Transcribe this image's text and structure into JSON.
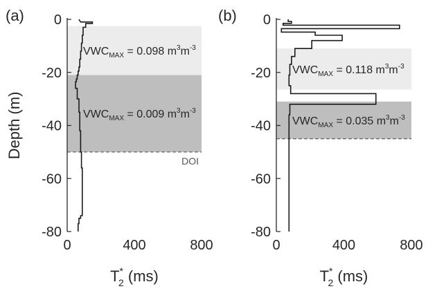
{
  "chart_data": [
    {
      "type": "line",
      "panel_label": "(a)",
      "xlabel": "T",
      "xlabel_sub": "2",
      "xlabel_sup": "*",
      "xlabel_unit": " (ms)",
      "ylabel": "Depth (m)",
      "xlim": [
        0,
        800
      ],
      "ylim": [
        -80,
        0
      ],
      "xticks": [
        "0",
        "400",
        "800"
      ],
      "yticks": [
        "0",
        "-20",
        "-40",
        "-60",
        "-80"
      ],
      "bands": [
        {
          "from": -2.5,
          "to": -21,
          "color": "#ececec",
          "label": {
            "prefix": "VWC",
            "sub": "MAX",
            "text": " = 0.098 m",
            "sup": "3",
            "unit": "m",
            "sup2": "-3"
          }
        },
        {
          "from": -21,
          "to": -50,
          "color": "#bebebe",
          "label": {
            "prefix": "VWC",
            "sub": "MAX",
            "text": " = 0.009 m",
            "sup": "3",
            "unit": "m",
            "sup2": "-3"
          }
        }
      ],
      "doi": {
        "depth": -50,
        "label": "DOI"
      },
      "series": [
        {
          "x": [
            70,
            80,
            150,
            150,
            110,
            110,
            95,
            95,
            90,
            90,
            85,
            85,
            80,
            80,
            75,
            75,
            70,
            70,
            65,
            65,
            60,
            60,
            55,
            55,
            50,
            50,
            60,
            60,
            70,
            70,
            75,
            75,
            80,
            80,
            85,
            85,
            90,
            90,
            80,
            80,
            70,
            70,
            65,
            65
          ],
          "y": [
            0,
            -1,
            -1,
            -1.6,
            -1.6,
            -3,
            -3,
            -6,
            -6,
            -9,
            -9,
            -12,
            -12,
            -15,
            -15,
            -18,
            -18,
            -19.5,
            -19.5,
            -21,
            -21,
            -22.5,
            -22.5,
            -23.5,
            -23.5,
            -26,
            -26,
            -30,
            -30,
            -35,
            -35,
            -42,
            -42,
            -50,
            -50,
            -56,
            -56,
            -74,
            -74,
            -75,
            -75,
            -77,
            -77,
            -80
          ]
        }
      ]
    },
    {
      "type": "line",
      "panel_label": "(b)",
      "xlabel": "T",
      "xlabel_sub": "2",
      "xlabel_sup": "*",
      "xlabel_unit": " (ms)",
      "ylabel": "",
      "xlim": [
        0,
        800
      ],
      "ylim": [
        -80,
        0
      ],
      "xticks": [
        "0",
        "400",
        "800"
      ],
      "yticks": [
        "0",
        "-20",
        "-40",
        "-60",
        "-80"
      ],
      "bands": [
        {
          "from": -11,
          "to": -26.5,
          "color": "#ececec",
          "label": {
            "prefix": "VWC",
            "sub": "MAX",
            "text": " = 0.118 m",
            "sup": "3",
            "unit": "m",
            "sup2": "-3"
          }
        },
        {
          "from": -31,
          "to": -45,
          "color": "#bebebe",
          "label": {
            "prefix": "VWC",
            "sub": "MAX",
            "text": " = 0.035 m",
            "sup": "3",
            "unit": "m",
            "sup2": "-3"
          }
        }
      ],
      "doi": {
        "depth": -45,
        "label": ""
      },
      "series": [
        {
          "x": [
            70,
            70,
            90,
            90,
            40,
            40,
            730,
            730,
            30,
            30,
            230,
            230,
            390,
            390,
            210,
            210,
            110,
            110,
            90,
            90,
            80,
            80,
            75,
            75,
            85,
            85,
            590,
            590,
            80,
            80,
            75,
            75
          ],
          "y": [
            0,
            -0.8,
            -0.8,
            -1.5,
            -1.5,
            -2.2,
            -2.2,
            -3.5,
            -3.5,
            -4.8,
            -4.8,
            -6,
            -6,
            -8,
            -8,
            -11,
            -11,
            -14,
            -14,
            -17,
            -17,
            -21,
            -21,
            -25,
            -25,
            -28,
            -28,
            -32,
            -32,
            -36,
            -36,
            -80
          ]
        }
      ]
    }
  ]
}
